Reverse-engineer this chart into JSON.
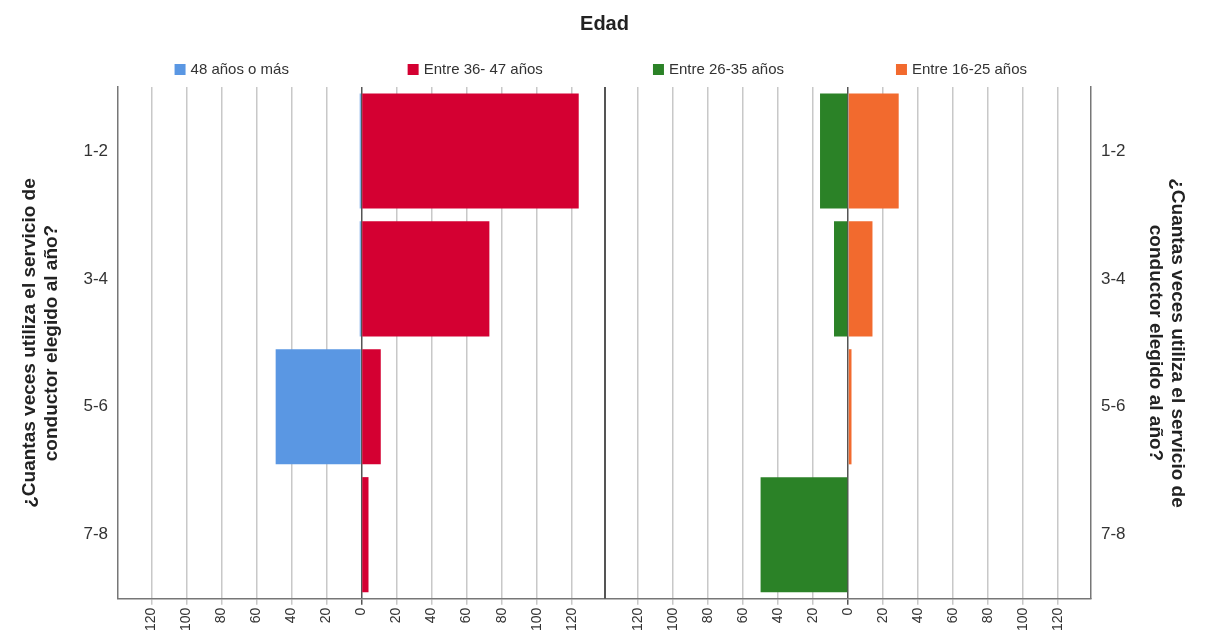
{
  "chart_data": [
    {
      "type": "bar",
      "orientation": "horizontal",
      "stacked": true,
      "grid": "x",
      "legend": "top",
      "title": "Edad",
      "ylabel": "¿Cuantas veces utiliza el servicio de conductor elegido al año?",
      "categories": [
        "1-2",
        "3-4",
        "5-6",
        "7-8"
      ],
      "series": [
        {
          "name": "48 años o más",
          "color": "#5a97e3",
          "values": [
            -1,
            -1,
            -49,
            0
          ]
        },
        {
          "name": "Entre 36- 47 años",
          "color": "#d40032",
          "values": [
            124,
            73,
            11,
            4
          ]
        }
      ],
      "xlim": [
        -139,
        139
      ],
      "xticks": [
        {
          "value": -120,
          "label": "120"
        },
        {
          "value": -100,
          "label": "100"
        },
        {
          "value": -80,
          "label": "80"
        },
        {
          "value": -60,
          "label": "60"
        },
        {
          "value": -40,
          "label": "40"
        },
        {
          "value": -20,
          "label": "20"
        },
        0,
        20,
        40,
        60,
        80,
        100,
        120
      ]
    },
    {
      "type": "bar",
      "orientation": "horizontal",
      "stacked": true,
      "grid": "x",
      "legend": "top",
      "ylabel": "¿Cuantas veces utiliza el servicio de conductor elegido al año?",
      "categories": [
        "1-2",
        "3-4",
        "5-6",
        "7-8"
      ],
      "series": [
        {
          "name": "Entre 26-35 años",
          "color": "#2b8227",
          "values": [
            -16,
            -8,
            0,
            -50
          ]
        },
        {
          "name": "Entre 16-25 años",
          "color": "#f26a2e",
          "values": [
            29,
            14,
            2,
            0
          ]
        }
      ],
      "xlim": [
        -139,
        139
      ],
      "xticks": [
        {
          "value": -120,
          "label": "120"
        },
        {
          "value": -100,
          "label": "100"
        },
        {
          "value": -80,
          "label": "80"
        },
        {
          "value": -60,
          "label": "60"
        },
        {
          "value": -40,
          "label": "40"
        },
        {
          "value": -20,
          "label": "20"
        },
        0,
        20,
        40,
        60,
        80,
        100,
        120
      ]
    }
  ]
}
